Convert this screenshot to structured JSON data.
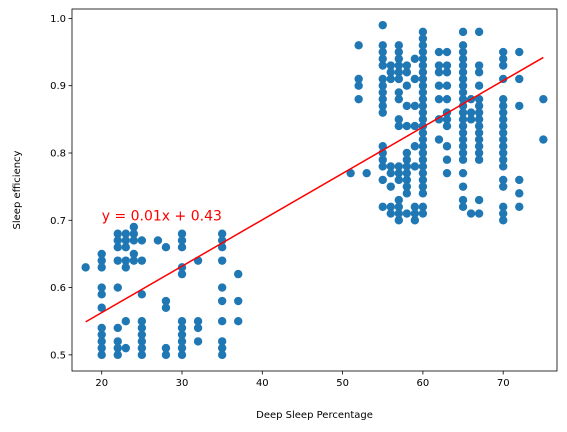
{
  "chart_data": {
    "type": "scatter",
    "xlabel": "Deep Sleep Percentage",
    "ylabel": "Sleep efficiency",
    "xlim": [
      16.3,
      76.7
    ],
    "ylim": [
      0.476,
      1.014
    ],
    "xticks": [
      20,
      30,
      40,
      50,
      60,
      70
    ],
    "yticks": [
      0.5,
      0.6,
      0.7,
      0.8,
      0.9,
      1.0
    ],
    "xtick_labels": [
      "20",
      "30",
      "40",
      "50",
      "60",
      "70"
    ],
    "ytick_labels": [
      "0.5",
      "0.6",
      "0.7",
      "0.8",
      "0.9",
      "1.0"
    ],
    "grid": false,
    "point_color": "#1f77b4",
    "fit_line": {
      "color": "#ff0000",
      "x": [
        18,
        75
      ],
      "y": [
        0.549,
        0.942
      ]
    },
    "annotation": {
      "text": "y = 0.01x + 0.43",
      "x": 20,
      "y": 0.7,
      "color": "#ff0000"
    },
    "points": [
      [
        18,
        0.63
      ],
      [
        20,
        0.65
      ],
      [
        20,
        0.64
      ],
      [
        20,
        0.63
      ],
      [
        20,
        0.6
      ],
      [
        20,
        0.59
      ],
      [
        20,
        0.57
      ],
      [
        20,
        0.54
      ],
      [
        20,
        0.53
      ],
      [
        20,
        0.52
      ],
      [
        20,
        0.51
      ],
      [
        20,
        0.5
      ],
      [
        22,
        0.68
      ],
      [
        22,
        0.67
      ],
      [
        22,
        0.66
      ],
      [
        22,
        0.64
      ],
      [
        22,
        0.6
      ],
      [
        22,
        0.54
      ],
      [
        22,
        0.52
      ],
      [
        22,
        0.51
      ],
      [
        22,
        0.5
      ],
      [
        23,
        0.68
      ],
      [
        23,
        0.67
      ],
      [
        23,
        0.66
      ],
      [
        23,
        0.64
      ],
      [
        23,
        0.63
      ],
      [
        23,
        0.55
      ],
      [
        23,
        0.51
      ],
      [
        24,
        0.69
      ],
      [
        24,
        0.68
      ],
      [
        24,
        0.67
      ],
      [
        24,
        0.65
      ],
      [
        24,
        0.64
      ],
      [
        25,
        0.67
      ],
      [
        25,
        0.64
      ],
      [
        25,
        0.59
      ],
      [
        25,
        0.55
      ],
      [
        25,
        0.54
      ],
      [
        25,
        0.53
      ],
      [
        25,
        0.52
      ],
      [
        25,
        0.51
      ],
      [
        25,
        0.5
      ],
      [
        27,
        0.67
      ],
      [
        28,
        0.66
      ],
      [
        28,
        0.58
      ],
      [
        28,
        0.57
      ],
      [
        28,
        0.51
      ],
      [
        28,
        0.5
      ],
      [
        30,
        0.68
      ],
      [
        30,
        0.67
      ],
      [
        30,
        0.66
      ],
      [
        30,
        0.63
      ],
      [
        30,
        0.62
      ],
      [
        30,
        0.55
      ],
      [
        30,
        0.54
      ],
      [
        30,
        0.53
      ],
      [
        30,
        0.52
      ],
      [
        30,
        0.51
      ],
      [
        30,
        0.5
      ],
      [
        32,
        0.64
      ],
      [
        32,
        0.55
      ],
      [
        32,
        0.54
      ],
      [
        32,
        0.52
      ],
      [
        35,
        0.68
      ],
      [
        35,
        0.67
      ],
      [
        35,
        0.66
      ],
      [
        35,
        0.64
      ],
      [
        35,
        0.6
      ],
      [
        35,
        0.58
      ],
      [
        35,
        0.55
      ],
      [
        35,
        0.52
      ],
      [
        35,
        0.51
      ],
      [
        35,
        0.5
      ],
      [
        37,
        0.62
      ],
      [
        37,
        0.58
      ],
      [
        37,
        0.55
      ],
      [
        51,
        0.77
      ],
      [
        52,
        0.96
      ],
      [
        52,
        0.91
      ],
      [
        52,
        0.9
      ],
      [
        52,
        0.88
      ],
      [
        53,
        0.77
      ],
      [
        55,
        0.99
      ],
      [
        55,
        0.96
      ],
      [
        55,
        0.95
      ],
      [
        55,
        0.94
      ],
      [
        55,
        0.93
      ],
      [
        55,
        0.91
      ],
      [
        55,
        0.9
      ],
      [
        55,
        0.89
      ],
      [
        55,
        0.88
      ],
      [
        55,
        0.87
      ],
      [
        55,
        0.86
      ],
      [
        55,
        0.81
      ],
      [
        55,
        0.8
      ],
      [
        55,
        0.79
      ],
      [
        55,
        0.78
      ],
      [
        55,
        0.76
      ],
      [
        55,
        0.72
      ],
      [
        56,
        0.93
      ],
      [
        56,
        0.92
      ],
      [
        56,
        0.91
      ],
      [
        56,
        0.78
      ],
      [
        56,
        0.77
      ],
      [
        56,
        0.75
      ],
      [
        56,
        0.72
      ],
      [
        56,
        0.71
      ],
      [
        57,
        0.96
      ],
      [
        57,
        0.95
      ],
      [
        57,
        0.94
      ],
      [
        57,
        0.93
      ],
      [
        57,
        0.92
      ],
      [
        57,
        0.91
      ],
      [
        57,
        0.89
      ],
      [
        57,
        0.88
      ],
      [
        57,
        0.85
      ],
      [
        57,
        0.84
      ],
      [
        57,
        0.78
      ],
      [
        57,
        0.77
      ],
      [
        57,
        0.76
      ],
      [
        57,
        0.73
      ],
      [
        57,
        0.72
      ],
      [
        57,
        0.71
      ],
      [
        57,
        0.7
      ],
      [
        58,
        0.93
      ],
      [
        58,
        0.92
      ],
      [
        58,
        0.9
      ],
      [
        58,
        0.87
      ],
      [
        58,
        0.84
      ],
      [
        58,
        0.8
      ],
      [
        58,
        0.79
      ],
      [
        58,
        0.78
      ],
      [
        58,
        0.77
      ],
      [
        58,
        0.76
      ],
      [
        58,
        0.75
      ],
      [
        58,
        0.74
      ],
      [
        58,
        0.71
      ],
      [
        59,
        0.94
      ],
      [
        59,
        0.91
      ],
      [
        59,
        0.87
      ],
      [
        59,
        0.84
      ],
      [
        59,
        0.81
      ],
      [
        59,
        0.78
      ],
      [
        59,
        0.72
      ],
      [
        59,
        0.71
      ],
      [
        59,
        0.7
      ],
      [
        60,
        0.98
      ],
      [
        60,
        0.97
      ],
      [
        60,
        0.96
      ],
      [
        60,
        0.95
      ],
      [
        60,
        0.94
      ],
      [
        60,
        0.93
      ],
      [
        60,
        0.92
      ],
      [
        60,
        0.91
      ],
      [
        60,
        0.9
      ],
      [
        60,
        0.89
      ],
      [
        60,
        0.88
      ],
      [
        60,
        0.87
      ],
      [
        60,
        0.86
      ],
      [
        60,
        0.85
      ],
      [
        60,
        0.84
      ],
      [
        60,
        0.83
      ],
      [
        60,
        0.82
      ],
      [
        60,
        0.81
      ],
      [
        60,
        0.8
      ],
      [
        60,
        0.79
      ],
      [
        60,
        0.78
      ],
      [
        60,
        0.77
      ],
      [
        60,
        0.76
      ],
      [
        60,
        0.75
      ],
      [
        60,
        0.74
      ],
      [
        60,
        0.72
      ],
      [
        60,
        0.71
      ],
      [
        62,
        0.95
      ],
      [
        62,
        0.93
      ],
      [
        62,
        0.92
      ],
      [
        62,
        0.9
      ],
      [
        62,
        0.88
      ],
      [
        62,
        0.85
      ],
      [
        62,
        0.82
      ],
      [
        63,
        0.95
      ],
      [
        63,
        0.93
      ],
      [
        63,
        0.92
      ],
      [
        63,
        0.9
      ],
      [
        63,
        0.88
      ],
      [
        63,
        0.86
      ],
      [
        63,
        0.85
      ],
      [
        63,
        0.84
      ],
      [
        63,
        0.81
      ],
      [
        63,
        0.79
      ],
      [
        63,
        0.77
      ],
      [
        65,
        0.98
      ],
      [
        65,
        0.96
      ],
      [
        65,
        0.95
      ],
      [
        65,
        0.94
      ],
      [
        65,
        0.93
      ],
      [
        65,
        0.92
      ],
      [
        65,
        0.91
      ],
      [
        65,
        0.9
      ],
      [
        65,
        0.89
      ],
      [
        65,
        0.88
      ],
      [
        65,
        0.87
      ],
      [
        65,
        0.86
      ],
      [
        65,
        0.85
      ],
      [
        65,
        0.84
      ],
      [
        65,
        0.83
      ],
      [
        65,
        0.82
      ],
      [
        65,
        0.81
      ],
      [
        65,
        0.8
      ],
      [
        65,
        0.79
      ],
      [
        65,
        0.77
      ],
      [
        65,
        0.75
      ],
      [
        65,
        0.73
      ],
      [
        65,
        0.72
      ],
      [
        66,
        0.88
      ],
      [
        66,
        0.86
      ],
      [
        66,
        0.85
      ],
      [
        66,
        0.71
      ],
      [
        67,
        0.98
      ],
      [
        67,
        0.93
      ],
      [
        67,
        0.92
      ],
      [
        67,
        0.9
      ],
      [
        67,
        0.88
      ],
      [
        67,
        0.87
      ],
      [
        67,
        0.86
      ],
      [
        67,
        0.85
      ],
      [
        67,
        0.84
      ],
      [
        67,
        0.83
      ],
      [
        67,
        0.82
      ],
      [
        67,
        0.81
      ],
      [
        67,
        0.8
      ],
      [
        67,
        0.79
      ],
      [
        67,
        0.73
      ],
      [
        67,
        0.71
      ],
      [
        70,
        0.95
      ],
      [
        70,
        0.94
      ],
      [
        70,
        0.93
      ],
      [
        70,
        0.91
      ],
      [
        70,
        0.88
      ],
      [
        70,
        0.87
      ],
      [
        70,
        0.86
      ],
      [
        70,
        0.85
      ],
      [
        70,
        0.84
      ],
      [
        70,
        0.83
      ],
      [
        70,
        0.82
      ],
      [
        70,
        0.81
      ],
      [
        70,
        0.8
      ],
      [
        70,
        0.79
      ],
      [
        70,
        0.78
      ],
      [
        70,
        0.76
      ],
      [
        70,
        0.75
      ],
      [
        70,
        0.72
      ],
      [
        70,
        0.71
      ],
      [
        70,
        0.7
      ],
      [
        72,
        0.95
      ],
      [
        72,
        0.91
      ],
      [
        72,
        0.87
      ],
      [
        72,
        0.76
      ],
      [
        72,
        0.74
      ],
      [
        72,
        0.72
      ],
      [
        75,
        0.88
      ],
      [
        75,
        0.82
      ]
    ]
  }
}
